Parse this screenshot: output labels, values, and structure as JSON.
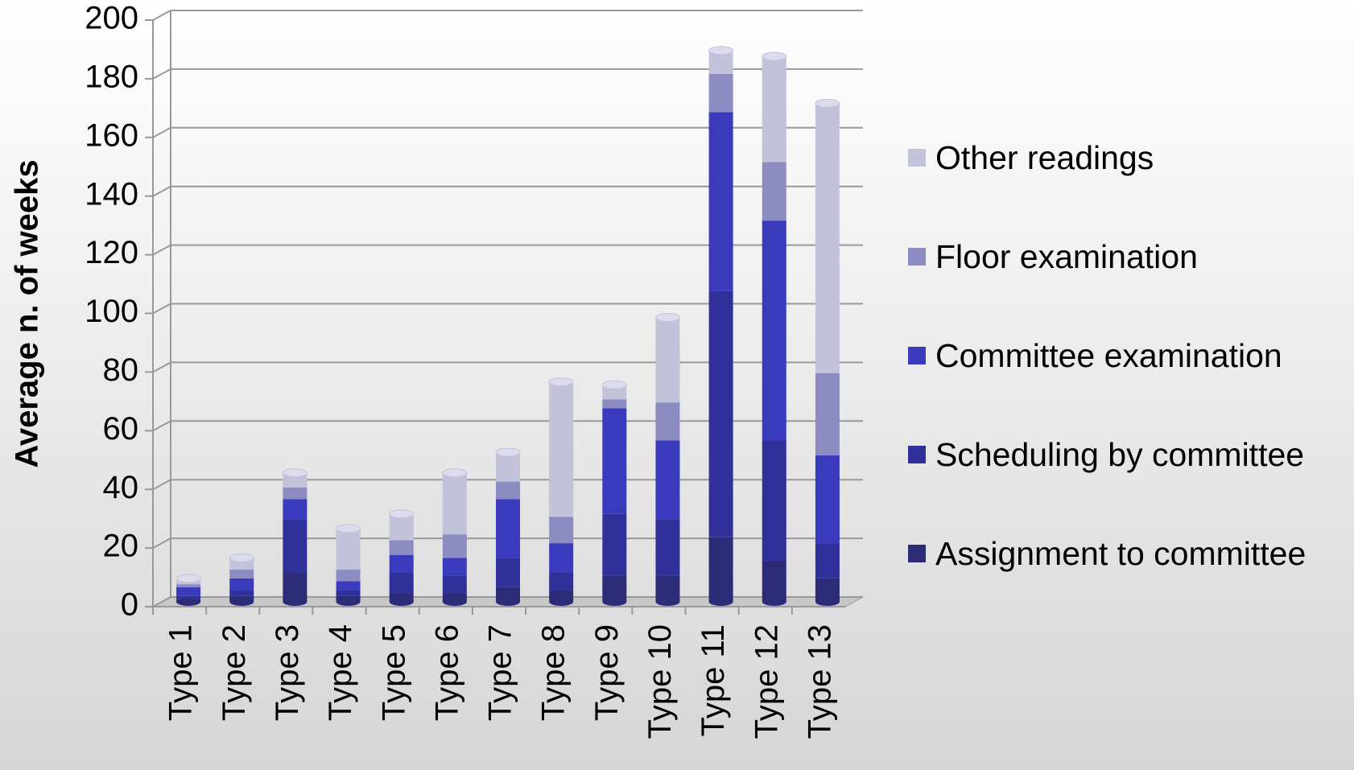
{
  "chart_data": {
    "type": "stacked_bar",
    "y_label": "Average n. of weeks",
    "categories": [
      "Type 1",
      "Type 2",
      "Type 3",
      "Type 4",
      "Type 5",
      "Type 6",
      "Type 7",
      "Type 8",
      "Type 9",
      "Type 10",
      "Type 11",
      "Type 12",
      "Type 13"
    ],
    "series": [
      {
        "name": "Assignment to committee",
        "color": "#2b2b78",
        "values": [
          1,
          2,
          10,
          2,
          3,
          3,
          5,
          4,
          9,
          9,
          22,
          14,
          8
        ]
      },
      {
        "name": "Scheduling by committee",
        "color": "#30309a",
        "values": [
          1,
          2,
          18,
          2,
          7,
          6,
          10,
          6,
          21,
          19,
          84,
          41,
          12
        ]
      },
      {
        "name": "Committee examination",
        "color": "#3a3abc",
        "values": [
          3,
          4,
          7,
          3,
          6,
          6,
          20,
          10,
          36,
          27,
          61,
          75,
          30
        ]
      },
      {
        "name": "Floor examination",
        "color": "#8c8cc2",
        "values": [
          1,
          3,
          4,
          4,
          5,
          8,
          6,
          9,
          3,
          13,
          13,
          20,
          28
        ]
      },
      {
        "name": "Other readings",
        "color": "#c2c2da",
        "values": [
          2,
          4,
          5,
          14,
          9,
          21,
          10,
          46,
          5,
          29,
          8,
          36,
          92
        ]
      }
    ],
    "ylim": [
      0,
      200
    ],
    "yticks": [
      0,
      20,
      40,
      60,
      80,
      100,
      120,
      140,
      160,
      180,
      200
    ],
    "grid": true,
    "legend": "right"
  }
}
